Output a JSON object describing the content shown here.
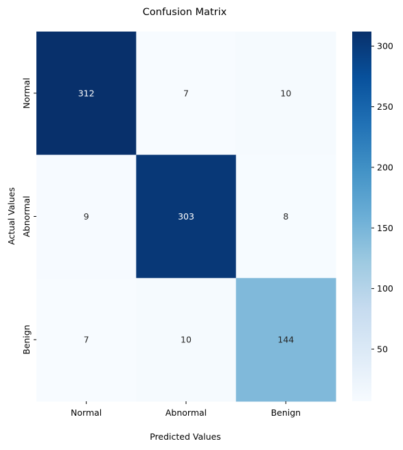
{
  "chart_data": {
    "type": "heatmap",
    "title": "Confusion Matrix",
    "xlabel": "Predicted Values",
    "ylabel": "Actual Values",
    "x_categories": [
      "Normal",
      "Abnormal",
      "Benign"
    ],
    "y_categories": [
      "Normal",
      "Abnormal",
      "Benign"
    ],
    "values": [
      [
        312,
        7,
        10
      ],
      [
        9,
        303,
        8
      ],
      [
        7,
        10,
        144
      ]
    ],
    "colormap": "Blues",
    "colorbar": {
      "range": [
        7,
        312
      ],
      "ticks": [
        50,
        100,
        150,
        200,
        250,
        300
      ]
    },
    "annotations": true,
    "grid": false
  }
}
